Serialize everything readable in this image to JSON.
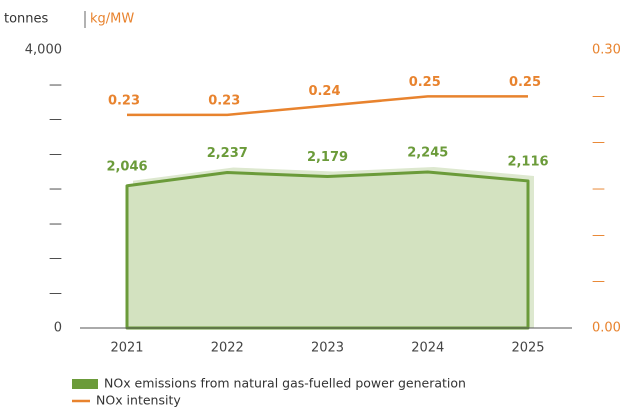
{
  "chart_data": {
    "type": "combo",
    "y_label": "tonnes",
    "y2_label": "kg/MW",
    "categories": [
      "2021",
      "2022",
      "2023",
      "2024",
      "2025"
    ],
    "series": [
      {
        "name": "NOx emissions from natural gas-fuelled power generation",
        "kind": "area",
        "color": "#6b9b3a",
        "fill": "#d3e2c0",
        "values": [
          2046,
          2237,
          2179,
          2245,
          2116
        ],
        "value_labels": [
          "2,046",
          "2,237",
          "2,179",
          "2,245",
          "2,116"
        ]
      },
      {
        "name": "NOx intensity",
        "kind": "line",
        "axis": "y2",
        "color": "#e8832e",
        "values": [
          0.23,
          0.23,
          0.24,
          0.25,
          0.25
        ]
      }
    ],
    "ylim": [
      0,
      4000
    ],
    "yticks": [
      0,
      {
        "value": 500,
        "label": "—"
      },
      {
        "value": 1000,
        "label": "—"
      },
      {
        "value": 1500,
        "label": "—"
      },
      {
        "value": 2000,
        "label": "—"
      },
      {
        "value": 2500,
        "label": "—"
      },
      {
        "value": 3000,
        "label": "—"
      },
      {
        "value": 3500,
        "label": "—"
      },
      {
        "value": 4000,
        "label": "4,000"
      }
    ],
    "y2lim": [
      0,
      0.3
    ],
    "y2ticks": [
      {
        "value": 0,
        "label": "0.00"
      },
      {
        "value": 0.05,
        "label": "—"
      },
      {
        "value": 0.1,
        "label": "—"
      },
      {
        "value": 0.15,
        "label": "—"
      },
      {
        "value": 0.2,
        "label": "—"
      },
      {
        "value": 0.25,
        "label": "—"
      },
      {
        "value": 0.3,
        "label": "0.30"
      }
    ]
  }
}
